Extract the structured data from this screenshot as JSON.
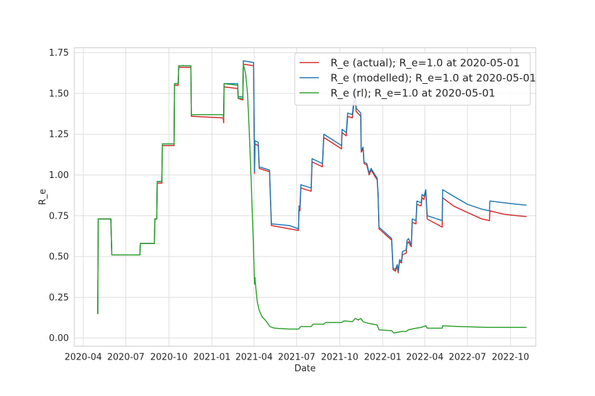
{
  "chart_data": {
    "type": "line",
    "title": "",
    "xlabel": "Date",
    "ylabel": "R_e",
    "grid": true,
    "legend_position": "top-right",
    "x_range": [
      "2020-03-13",
      "2022-11-24"
    ],
    "ylim": [
      -0.05,
      1.78
    ],
    "x_ticks": [
      "2020-04-01",
      "2020-07-01",
      "2020-10-01",
      "2021-01-01",
      "2021-04-01",
      "2021-07-01",
      "2021-10-01",
      "2022-01-01",
      "2022-04-01",
      "2022-07-01",
      "2022-10-01"
    ],
    "x_tick_labels": [
      "2020-04",
      "2020-07",
      "2020-10",
      "2021-01",
      "2021-04",
      "2021-07",
      "2021-10",
      "2022-01",
      "2022-04",
      "2022-07",
      "2022-10"
    ],
    "y_ticks": [
      0.0,
      0.25,
      0.5,
      0.75,
      1.0,
      1.25,
      1.5,
      1.75
    ],
    "y_tick_labels": [
      "0.00",
      "0.25",
      "0.50",
      "0.75",
      "1.00",
      "1.25",
      "1.50",
      "1.75"
    ],
    "series": [
      {
        "name": "R_e (actual); R_e=1.0 at 2020-05-01",
        "color": "#d62728",
        "points": [
          [
            "2020-05-01",
            0.15
          ],
          [
            "2020-05-02",
            0.15
          ],
          [
            "2020-05-03",
            0.73
          ],
          [
            "2020-05-25",
            0.73
          ],
          [
            "2020-05-30",
            0.73
          ],
          [
            "2020-06-01",
            0.51
          ],
          [
            "2020-07-31",
            0.51
          ],
          [
            "2020-08-01",
            0.58
          ],
          [
            "2020-08-31",
            0.58
          ],
          [
            "2020-09-01",
            0.73
          ],
          [
            "2020-09-05",
            0.73
          ],
          [
            "2020-09-06",
            0.95
          ],
          [
            "2020-09-16",
            0.95
          ],
          [
            "2020-09-17",
            1.18
          ],
          [
            "2020-10-12",
            1.18
          ],
          [
            "2020-10-13",
            1.55
          ],
          [
            "2020-10-21",
            1.55
          ],
          [
            "2020-10-22",
            1.66
          ],
          [
            "2020-11-17",
            1.66
          ],
          [
            "2020-11-18",
            1.36
          ],
          [
            "2021-01-25",
            1.35
          ],
          [
            "2021-01-26",
            1.32
          ],
          [
            "2021-01-27",
            1.54
          ],
          [
            "2021-02-25",
            1.53
          ],
          [
            "2021-02-26",
            1.47
          ],
          [
            "2021-03-08",
            1.46
          ],
          [
            "2021-03-09",
            1.68
          ],
          [
            "2021-03-31",
            1.67
          ],
          [
            "2021-04-02",
            1.01
          ],
          [
            "2021-04-03",
            1.19
          ],
          [
            "2021-04-10",
            1.18
          ],
          [
            "2021-04-12",
            1.04
          ],
          [
            "2021-05-04",
            1.02
          ],
          [
            "2021-05-08",
            0.69
          ],
          [
            "2021-06-15",
            0.67
          ],
          [
            "2021-07-05",
            0.66
          ],
          [
            "2021-07-06",
            0.79
          ],
          [
            "2021-07-08",
            0.78
          ],
          [
            "2021-07-10",
            0.92
          ],
          [
            "2021-08-01",
            0.9
          ],
          [
            "2021-08-03",
            1.08
          ],
          [
            "2021-08-25",
            1.05
          ],
          [
            "2021-08-28",
            1.23
          ],
          [
            "2021-10-05",
            1.16
          ],
          [
            "2021-10-06",
            1.26
          ],
          [
            "2021-10-15",
            1.24
          ],
          [
            "2021-10-18",
            1.36
          ],
          [
            "2021-10-28",
            1.35
          ],
          [
            "2021-11-03",
            1.51
          ],
          [
            "2021-11-05",
            1.39
          ],
          [
            "2021-11-15",
            1.36
          ],
          [
            "2021-11-16",
            1.14
          ],
          [
            "2021-11-20",
            1.16
          ],
          [
            "2021-11-22",
            1.07
          ],
          [
            "2021-11-28",
            1.06
          ],
          [
            "2021-12-03",
            1.0
          ],
          [
            "2021-12-07",
            1.03
          ],
          [
            "2021-12-20",
            0.97
          ],
          [
            "2021-12-22",
            0.88
          ],
          [
            "2021-12-24",
            0.67
          ],
          [
            "2022-01-20",
            0.6
          ],
          [
            "2022-01-23",
            0.42
          ],
          [
            "2022-01-28",
            0.41
          ],
          [
            "2022-02-01",
            0.44
          ],
          [
            "2022-02-03",
            0.4
          ],
          [
            "2022-02-06",
            0.47
          ],
          [
            "2022-02-10",
            0.46
          ],
          [
            "2022-02-12",
            0.51
          ],
          [
            "2022-02-20",
            0.52
          ],
          [
            "2022-02-22",
            0.58
          ],
          [
            "2022-02-25",
            0.59
          ],
          [
            "2022-03-03",
            0.56
          ],
          [
            "2022-03-05",
            0.71
          ],
          [
            "2022-03-13",
            0.7
          ],
          [
            "2022-03-15",
            0.82
          ],
          [
            "2022-03-24",
            0.81
          ],
          [
            "2022-03-26",
            0.86
          ],
          [
            "2022-03-30",
            0.85
          ],
          [
            "2022-04-03",
            0.9
          ],
          [
            "2022-04-06",
            0.73
          ],
          [
            "2022-05-08",
            0.68
          ],
          [
            "2022-05-09",
            0.86
          ],
          [
            "2022-06-01",
            0.81
          ],
          [
            "2022-07-01",
            0.77
          ],
          [
            "2022-08-01",
            0.73
          ],
          [
            "2022-08-17",
            0.72
          ],
          [
            "2022-08-18",
            0.78
          ],
          [
            "2022-09-15",
            0.76
          ],
          [
            "2022-10-15",
            0.75
          ],
          [
            "2022-11-04",
            0.745
          ]
        ]
      },
      {
        "name": "R_e (modelled); R_e=1.0 at 2020-05-01",
        "color": "#1f77b4",
        "points": [
          [
            "2020-05-01",
            0.15
          ],
          [
            "2020-05-02",
            0.15
          ],
          [
            "2020-05-03",
            0.73
          ],
          [
            "2020-05-25",
            0.73
          ],
          [
            "2020-05-30",
            0.73
          ],
          [
            "2020-06-01",
            0.51
          ],
          [
            "2020-07-31",
            0.51
          ],
          [
            "2020-08-01",
            0.58
          ],
          [
            "2020-08-31",
            0.58
          ],
          [
            "2020-09-01",
            0.73
          ],
          [
            "2020-09-05",
            0.73
          ],
          [
            "2020-09-06",
            0.96
          ],
          [
            "2020-09-16",
            0.96
          ],
          [
            "2020-09-17",
            1.19
          ],
          [
            "2020-10-12",
            1.19
          ],
          [
            "2020-10-13",
            1.56
          ],
          [
            "2020-10-21",
            1.56
          ],
          [
            "2020-10-22",
            1.67
          ],
          [
            "2020-11-17",
            1.67
          ],
          [
            "2020-11-18",
            1.37
          ],
          [
            "2021-01-25",
            1.37
          ],
          [
            "2021-01-26",
            1.35
          ],
          [
            "2021-01-27",
            1.56
          ],
          [
            "2021-02-25",
            1.56
          ],
          [
            "2021-02-26",
            1.48
          ],
          [
            "2021-03-08",
            1.48
          ],
          [
            "2021-03-09",
            1.7
          ],
          [
            "2021-03-31",
            1.69
          ],
          [
            "2021-04-02",
            1.02
          ],
          [
            "2021-04-03",
            1.21
          ],
          [
            "2021-04-10",
            1.2
          ],
          [
            "2021-04-12",
            1.05
          ],
          [
            "2021-05-04",
            1.03
          ],
          [
            "2021-05-08",
            0.7
          ],
          [
            "2021-06-15",
            0.69
          ],
          [
            "2021-07-05",
            0.67
          ],
          [
            "2021-07-06",
            0.81
          ],
          [
            "2021-07-08",
            0.8
          ],
          [
            "2021-07-10",
            0.94
          ],
          [
            "2021-08-01",
            0.92
          ],
          [
            "2021-08-03",
            1.1
          ],
          [
            "2021-08-25",
            1.07
          ],
          [
            "2021-08-28",
            1.25
          ],
          [
            "2021-10-05",
            1.18
          ],
          [
            "2021-10-06",
            1.28
          ],
          [
            "2021-10-15",
            1.26
          ],
          [
            "2021-10-18",
            1.38
          ],
          [
            "2021-10-28",
            1.37
          ],
          [
            "2021-11-03",
            1.53
          ],
          [
            "2021-11-05",
            1.41
          ],
          [
            "2021-11-15",
            1.38
          ],
          [
            "2021-11-16",
            1.15
          ],
          [
            "2021-11-20",
            1.17
          ],
          [
            "2021-11-22",
            1.08
          ],
          [
            "2021-11-28",
            1.07
          ],
          [
            "2021-12-03",
            1.01
          ],
          [
            "2021-12-07",
            1.04
          ],
          [
            "2021-12-20",
            0.98
          ],
          [
            "2021-12-22",
            0.89
          ],
          [
            "2021-12-24",
            0.68
          ],
          [
            "2022-01-20",
            0.61
          ],
          [
            "2022-01-23",
            0.43
          ],
          [
            "2022-01-28",
            0.42
          ],
          [
            "2022-02-01",
            0.45
          ],
          [
            "2022-02-03",
            0.41
          ],
          [
            "2022-02-06",
            0.48
          ],
          [
            "2022-02-10",
            0.47
          ],
          [
            "2022-02-12",
            0.53
          ],
          [
            "2022-02-20",
            0.54
          ],
          [
            "2022-02-22",
            0.6
          ],
          [
            "2022-02-25",
            0.61
          ],
          [
            "2022-03-03",
            0.57
          ],
          [
            "2022-03-05",
            0.73
          ],
          [
            "2022-03-13",
            0.72
          ],
          [
            "2022-03-15",
            0.84
          ],
          [
            "2022-03-24",
            0.83
          ],
          [
            "2022-03-26",
            0.88
          ],
          [
            "2022-03-30",
            0.87
          ],
          [
            "2022-04-03",
            0.91
          ],
          [
            "2022-04-06",
            0.75
          ],
          [
            "2022-05-08",
            0.72
          ],
          [
            "2022-05-09",
            0.91
          ],
          [
            "2022-06-01",
            0.87
          ],
          [
            "2022-07-01",
            0.82
          ],
          [
            "2022-08-01",
            0.79
          ],
          [
            "2022-08-17",
            0.78
          ],
          [
            "2022-08-18",
            0.84
          ],
          [
            "2022-09-15",
            0.83
          ],
          [
            "2022-10-15",
            0.82
          ],
          [
            "2022-11-04",
            0.815
          ]
        ]
      },
      {
        "name": "R_e (rl); R_e=1.0 at 2020-05-01",
        "color": "#2ca02c",
        "points": [
          [
            "2020-05-01",
            0.15
          ],
          [
            "2020-05-02",
            0.15
          ],
          [
            "2020-05-03",
            0.73
          ],
          [
            "2020-05-25",
            0.73
          ],
          [
            "2020-05-30",
            0.73
          ],
          [
            "2020-06-01",
            0.51
          ],
          [
            "2020-07-31",
            0.51
          ],
          [
            "2020-08-01",
            0.58
          ],
          [
            "2020-08-31",
            0.58
          ],
          [
            "2020-09-01",
            0.73
          ],
          [
            "2020-09-05",
            0.73
          ],
          [
            "2020-09-06",
            0.96
          ],
          [
            "2020-09-16",
            0.96
          ],
          [
            "2020-09-17",
            1.19
          ],
          [
            "2020-10-12",
            1.19
          ],
          [
            "2020-10-13",
            1.56
          ],
          [
            "2020-10-21",
            1.56
          ],
          [
            "2020-10-22",
            1.67
          ],
          [
            "2020-11-17",
            1.67
          ],
          [
            "2020-11-18",
            1.37
          ],
          [
            "2021-01-25",
            1.37
          ],
          [
            "2021-01-26",
            1.35
          ],
          [
            "2021-01-27",
            1.56
          ],
          [
            "2021-02-25",
            1.55
          ],
          [
            "2021-02-26",
            1.47
          ],
          [
            "2021-03-08",
            1.47
          ],
          [
            "2021-03-09",
            1.68
          ],
          [
            "2021-03-14",
            1.62
          ],
          [
            "2021-03-18",
            1.5
          ],
          [
            "2021-03-22",
            1.25
          ],
          [
            "2021-03-26",
            0.95
          ],
          [
            "2021-03-30",
            0.62
          ],
          [
            "2021-04-02",
            0.33
          ],
          [
            "2021-04-03",
            0.37
          ],
          [
            "2021-04-05",
            0.3
          ],
          [
            "2021-04-08",
            0.22
          ],
          [
            "2021-04-12",
            0.17
          ],
          [
            "2021-04-18",
            0.13
          ],
          [
            "2021-04-25",
            0.11
          ],
          [
            "2021-05-05",
            0.07
          ],
          [
            "2021-05-15",
            0.06
          ],
          [
            "2021-06-15",
            0.055
          ],
          [
            "2021-07-05",
            0.055
          ],
          [
            "2021-07-10",
            0.07
          ],
          [
            "2021-08-01",
            0.07
          ],
          [
            "2021-08-05",
            0.085
          ],
          [
            "2021-08-28",
            0.085
          ],
          [
            "2021-09-01",
            0.095
          ],
          [
            "2021-10-05",
            0.095
          ],
          [
            "2021-10-10",
            0.105
          ],
          [
            "2021-10-28",
            0.1
          ],
          [
            "2021-11-03",
            0.12
          ],
          [
            "2021-11-10",
            0.11
          ],
          [
            "2021-11-15",
            0.12
          ],
          [
            "2021-11-20",
            0.1
          ],
          [
            "2021-12-01",
            0.09
          ],
          [
            "2021-12-20",
            0.08
          ],
          [
            "2021-12-24",
            0.05
          ],
          [
            "2022-01-20",
            0.045
          ],
          [
            "2022-01-25",
            0.03
          ],
          [
            "2022-02-10",
            0.04
          ],
          [
            "2022-02-20",
            0.04
          ],
          [
            "2022-02-25",
            0.05
          ],
          [
            "2022-03-13",
            0.06
          ],
          [
            "2022-03-24",
            0.065
          ],
          [
            "2022-04-03",
            0.075
          ],
          [
            "2022-04-06",
            0.06
          ],
          [
            "2022-05-08",
            0.06
          ],
          [
            "2022-05-09",
            0.075
          ],
          [
            "2022-06-15",
            0.07
          ],
          [
            "2022-08-17",
            0.065
          ],
          [
            "2022-11-04",
            0.065
          ]
        ]
      }
    ]
  }
}
